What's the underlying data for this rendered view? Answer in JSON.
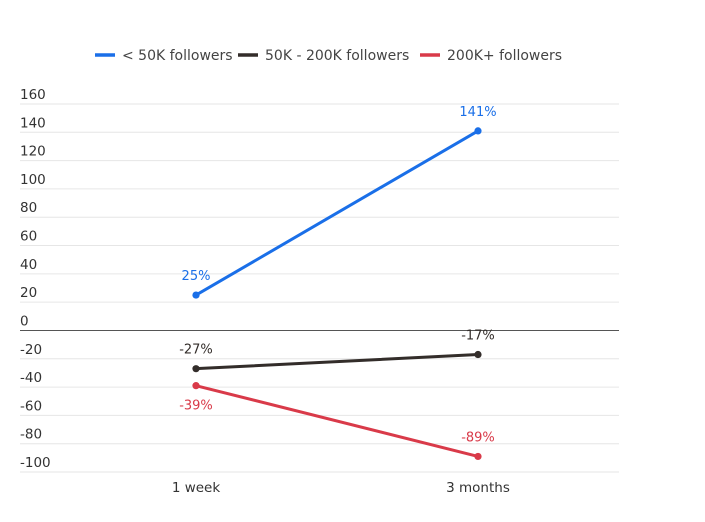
{
  "chart_data": {
    "type": "line",
    "title": "",
    "xlabel": "",
    "ylabel": "",
    "categories": [
      "1 week",
      "3 months"
    ],
    "ylim": [
      -100,
      160
    ],
    "yticks": [
      160,
      140,
      120,
      100,
      80,
      60,
      40,
      20,
      0,
      -20,
      -40,
      -60,
      -80,
      -100
    ],
    "grid": true,
    "legend_position": "top",
    "series": [
      {
        "name": "< 50K followers",
        "color": "#1a6fe8",
        "values": [
          25,
          141
        ],
        "labels": [
          "25%",
          "141%"
        ]
      },
      {
        "name": "50K - 200K followers",
        "color": "#332d2a",
        "values": [
          -27,
          -17
        ],
        "labels": [
          "-27%",
          "-17%"
        ]
      },
      {
        "name": "200K+ followers",
        "color": "#d93a49",
        "values": [
          -39,
          -89
        ],
        "labels": [
          "-39%",
          "-89%"
        ]
      }
    ]
  }
}
